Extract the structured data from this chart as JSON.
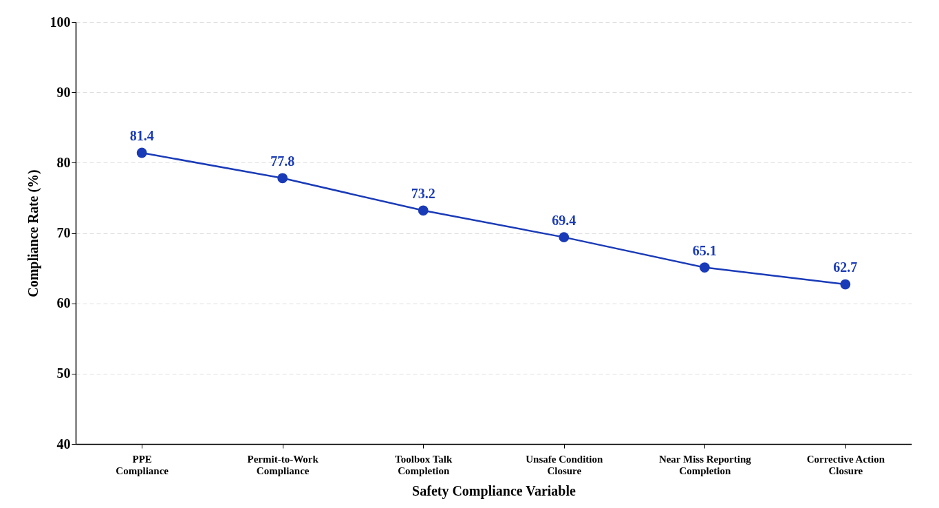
{
  "chart_data": {
    "type": "line",
    "xlabel": "Safety Compliance Variable",
    "ylabel": "Compliance Rate (%)",
    "categories": [
      "PPE\nCompliance",
      "Permit-to-Work\nCompliance",
      "Toolbox Talk\nCompletion",
      "Unsafe Condition\nClosure",
      "Near Miss Reporting\nCompletion",
      "Corrective Action\nClosure"
    ],
    "values": [
      81.4,
      77.8,
      73.2,
      69.4,
      65.1,
      62.7
    ],
    "color": "#1a3bb8",
    "ylim": [
      40,
      100
    ],
    "yticks": [
      40,
      50,
      60,
      70,
      80,
      90,
      100
    ],
    "grid": "y",
    "data_labels": true,
    "marker": "circle",
    "line_style": "solid"
  }
}
